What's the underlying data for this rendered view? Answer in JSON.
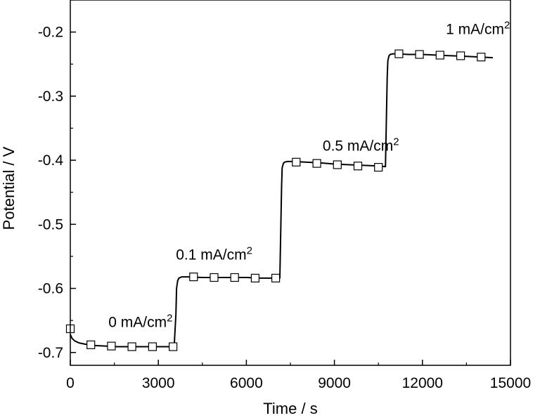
{
  "chart_data": {
    "type": "line",
    "title": "",
    "xlabel": "Time / s",
    "ylabel": "Potential / V",
    "xlim": [
      0,
      15000
    ],
    "ylim": [
      -0.72,
      -0.15
    ],
    "x_ticks": [
      0,
      3000,
      6000,
      9000,
      12000,
      15000
    ],
    "x_tick_labels": [
      "0",
      "3000",
      "6000",
      "9000",
      "12000",
      "15000"
    ],
    "y_ticks": [
      -0.7,
      -0.6,
      -0.5,
      -0.4,
      -0.3,
      -0.2
    ],
    "y_tick_labels": [
      "-0.7",
      "-0.6",
      "-0.5",
      "-0.4",
      "-0.3",
      "-0.2"
    ],
    "grid": false,
    "legend": "none",
    "series": [
      {
        "line": {
          "x": [
            0,
            60,
            150,
            300,
            500,
            800,
            1200,
            1600,
            2000,
            2400,
            2800,
            3200,
            3540,
            3600,
            3620,
            3660,
            3700,
            3800,
            4000,
            4500,
            5000,
            5500,
            6000,
            6500,
            7000,
            7140,
            7200,
            7220,
            7260,
            7300,
            7400,
            7600,
            8000,
            8500,
            9000,
            9500,
            10000,
            10500,
            10740,
            10800,
            10820,
            10860,
            10900,
            11000,
            11200,
            11500,
            12000,
            12500,
            13000,
            13500,
            14000,
            14400
          ],
          "y": [
            -0.672,
            -0.678,
            -0.682,
            -0.685,
            -0.687,
            -0.689,
            -0.69,
            -0.691,
            -0.691,
            -0.691,
            -0.691,
            -0.691,
            -0.691,
            -0.64,
            -0.6,
            -0.588,
            -0.584,
            -0.582,
            -0.582,
            -0.583,
            -0.583,
            -0.583,
            -0.583,
            -0.584,
            -0.584,
            -0.584,
            -0.44,
            -0.412,
            -0.405,
            -0.403,
            -0.402,
            -0.402,
            -0.403,
            -0.404,
            -0.406,
            -0.407,
            -0.408,
            -0.409,
            -0.41,
            -0.27,
            -0.245,
            -0.237,
            -0.235,
            -0.234,
            -0.234,
            -0.235,
            -0.235,
            -0.236,
            -0.237,
            -0.238,
            -0.239,
            -0.24
          ]
        },
        "markers": {
          "symbol": "open-square",
          "x": [
            0,
            700,
            1400,
            2100,
            2800,
            3500,
            4200,
            4900,
            5600,
            6300,
            7000,
            7700,
            8400,
            9100,
            9800,
            10500,
            11200,
            11900,
            12600,
            13300,
            14000
          ],
          "y": [
            -0.663,
            -0.688,
            -0.69,
            -0.691,
            -0.691,
            -0.691,
            -0.582,
            -0.583,
            -0.583,
            -0.584,
            -0.584,
            -0.403,
            -0.405,
            -0.407,
            -0.409,
            -0.411,
            -0.234,
            -0.235,
            -0.236,
            -0.237,
            -0.239
          ]
        }
      }
    ],
    "annotations": [
      {
        "base": "0 mA/cm",
        "sup": "2",
        "x": 1300,
        "y": -0.66
      },
      {
        "base": "0.1 mA/cm",
        "sup": "2",
        "x": 3600,
        "y": -0.555
      },
      {
        "base": "0.5 mA/cm",
        "sup": "2",
        "x": 8600,
        "y": -0.385
      },
      {
        "base": "1 mA/cm",
        "sup": "2",
        "x": 12800,
        "y": -0.203
      }
    ],
    "colors": {
      "line": "#000000",
      "marker_fill": "#ffffff",
      "marker_stroke": "#000000"
    }
  }
}
